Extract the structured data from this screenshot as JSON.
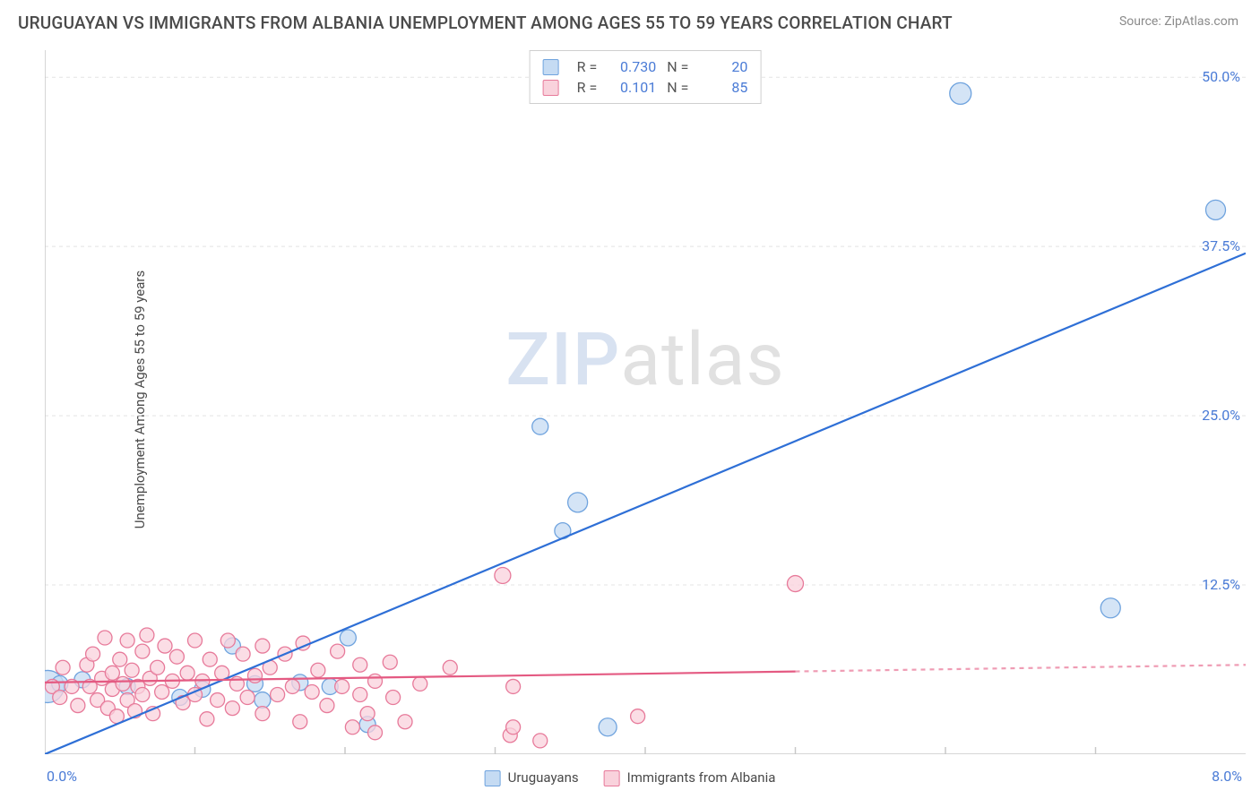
{
  "title": "URUGUAYAN VS IMMIGRANTS FROM ALBANIA UNEMPLOYMENT AMONG AGES 55 TO 59 YEARS CORRELATION CHART",
  "source": "Source: ZipAtlas.com",
  "ylabel": "Unemployment Among Ages 55 to 59 years",
  "watermark": {
    "a": "ZIP",
    "b": "atlas"
  },
  "chart": {
    "type": "scatter",
    "xlim": [
      0.0,
      8.0
    ],
    "ylim": [
      0.0,
      52.0
    ],
    "xticks_major": [
      0.0,
      8.0
    ],
    "xtick_labels": [
      "0.0%",
      "8.0%"
    ],
    "xticks_minor": [
      1,
      2,
      3,
      4,
      5,
      6,
      7
    ],
    "yticks": [
      12.5,
      25.0,
      37.5,
      50.0
    ],
    "ytick_labels": [
      "12.5%",
      "25.0%",
      "37.5%",
      "50.0%"
    ],
    "background_color": "#ffffff",
    "grid_color": "#e4e4e4",
    "grid_dash": "4,4",
    "axis_color": "#c8c8c8",
    "series": [
      {
        "name": "Uruguayans",
        "color_fill": "#c5dbf3",
        "color_stroke": "#6fa3de",
        "line_color": "#2e6fd6",
        "line_width": 2.2,
        "r_value": "0.730",
        "n_value": "20",
        "trend": {
          "x1": 0.0,
          "y1": 0.0,
          "x2": 8.0,
          "y2": 37.0,
          "solid_to_x": 8.0
        },
        "marker_radius": 9,
        "points": [
          [
            0.02,
            5.0,
            18
          ],
          [
            0.1,
            5.2,
            9
          ],
          [
            0.25,
            5.5,
            9
          ],
          [
            0.55,
            5.0,
            9
          ],
          [
            0.9,
            4.2,
            9
          ],
          [
            1.05,
            4.8,
            9
          ],
          [
            1.25,
            8.0,
            9
          ],
          [
            1.4,
            5.2,
            9
          ],
          [
            1.45,
            4.0,
            9
          ],
          [
            1.7,
            5.3,
            9
          ],
          [
            1.9,
            5.0,
            9
          ],
          [
            2.02,
            8.6,
            9
          ],
          [
            2.15,
            2.2,
            9
          ],
          [
            3.45,
            16.5,
            9
          ],
          [
            3.55,
            18.6,
            11
          ],
          [
            3.3,
            24.2,
            9
          ],
          [
            3.75,
            2.0,
            10
          ],
          [
            6.1,
            48.8,
            12
          ],
          [
            7.1,
            10.8,
            11
          ],
          [
            7.8,
            40.2,
            11
          ]
        ]
      },
      {
        "name": "Immigrants from Albania",
        "color_fill": "#f9d2dc",
        "color_stroke": "#e77a9a",
        "line_color": "#e45a82",
        "line_width": 2.2,
        "r_value": "0.101",
        "n_value": "85",
        "trend": {
          "x1": 0.0,
          "y1": 5.3,
          "x2": 8.0,
          "y2": 6.6,
          "solid_to_x": 5.0
        },
        "marker_radius": 8,
        "points": [
          [
            0.05,
            5.0,
            8
          ],
          [
            0.1,
            4.2,
            8
          ],
          [
            0.12,
            6.4,
            8
          ],
          [
            0.18,
            5.0,
            8
          ],
          [
            0.22,
            3.6,
            8
          ],
          [
            0.28,
            6.6,
            8
          ],
          [
            0.3,
            5.0,
            8
          ],
          [
            0.32,
            7.4,
            8
          ],
          [
            0.35,
            4.0,
            8
          ],
          [
            0.38,
            5.6,
            8
          ],
          [
            0.4,
            8.6,
            8
          ],
          [
            0.42,
            3.4,
            8
          ],
          [
            0.45,
            6.0,
            8
          ],
          [
            0.45,
            4.8,
            8
          ],
          [
            0.48,
            2.8,
            8
          ],
          [
            0.5,
            7.0,
            8
          ],
          [
            0.52,
            5.2,
            8
          ],
          [
            0.55,
            8.4,
            8
          ],
          [
            0.55,
            4.0,
            8
          ],
          [
            0.58,
            6.2,
            8
          ],
          [
            0.6,
            3.2,
            8
          ],
          [
            0.62,
            5.0,
            8
          ],
          [
            0.65,
            7.6,
            8
          ],
          [
            0.65,
            4.4,
            8
          ],
          [
            0.68,
            8.8,
            8
          ],
          [
            0.7,
            5.6,
            8
          ],
          [
            0.72,
            3.0,
            8
          ],
          [
            0.75,
            6.4,
            8
          ],
          [
            0.78,
            4.6,
            8
          ],
          [
            0.8,
            8.0,
            8
          ],
          [
            0.85,
            5.4,
            8
          ],
          [
            0.88,
            7.2,
            8
          ],
          [
            0.92,
            3.8,
            8
          ],
          [
            0.95,
            6.0,
            8
          ],
          [
            1.0,
            4.4,
            8
          ],
          [
            1.0,
            8.4,
            8
          ],
          [
            1.05,
            5.4,
            8
          ],
          [
            1.08,
            2.6,
            8
          ],
          [
            1.1,
            7.0,
            8
          ],
          [
            1.15,
            4.0,
            8
          ],
          [
            1.18,
            6.0,
            8
          ],
          [
            1.22,
            8.4,
            8
          ],
          [
            1.25,
            3.4,
            8
          ],
          [
            1.28,
            5.2,
            8
          ],
          [
            1.32,
            7.4,
            8
          ],
          [
            1.35,
            4.2,
            8
          ],
          [
            1.4,
            5.8,
            8
          ],
          [
            1.45,
            8.0,
            8
          ],
          [
            1.45,
            3.0,
            8
          ],
          [
            1.5,
            6.4,
            8
          ],
          [
            1.55,
            4.4,
            8
          ],
          [
            1.6,
            7.4,
            8
          ],
          [
            1.65,
            5.0,
            8
          ],
          [
            1.7,
            2.4,
            8
          ],
          [
            1.72,
            8.2,
            8
          ],
          [
            1.78,
            4.6,
            8
          ],
          [
            1.82,
            6.2,
            8
          ],
          [
            1.88,
            3.6,
            8
          ],
          [
            1.95,
            7.6,
            8
          ],
          [
            1.98,
            5.0,
            8
          ],
          [
            2.05,
            2.0,
            8
          ],
          [
            2.1,
            4.4,
            8
          ],
          [
            2.1,
            6.6,
            8
          ],
          [
            2.15,
            3.0,
            8
          ],
          [
            2.2,
            5.4,
            8
          ],
          [
            2.2,
            1.6,
            8
          ],
          [
            2.3,
            6.8,
            8
          ],
          [
            2.32,
            4.2,
            8
          ],
          [
            2.4,
            2.4,
            8
          ],
          [
            2.5,
            5.2,
            8
          ],
          [
            2.7,
            6.4,
            8
          ],
          [
            3.05,
            13.2,
            9
          ],
          [
            3.1,
            1.4,
            8
          ],
          [
            3.12,
            2.0,
            8
          ],
          [
            3.3,
            1.0,
            8
          ],
          [
            3.12,
            5.0,
            8
          ],
          [
            3.95,
            2.8,
            8
          ],
          [
            5.0,
            12.6,
            9
          ]
        ]
      }
    ],
    "legend_bottom": [
      {
        "label": "Uruguayans",
        "fill": "#c5dbf3",
        "stroke": "#6fa3de"
      },
      {
        "label": "Immigrants from Albania",
        "fill": "#f9d2dc",
        "stroke": "#e77a9a"
      }
    ],
    "legend_box_labels": {
      "r": "R =",
      "n": "N ="
    }
  }
}
